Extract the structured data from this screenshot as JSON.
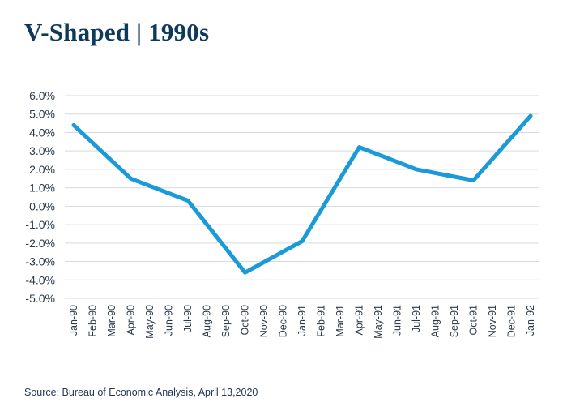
{
  "title": "V-Shaped | 1990s",
  "source": "Source: Bureau of Economic Analysis, April 13,2020",
  "chart_data": {
    "type": "line",
    "x": [
      "Jan-90",
      "Feb-90",
      "Mar-90",
      "Apr-90",
      "May-90",
      "Jun-90",
      "Jul-90",
      "Aug-90",
      "Sep-90",
      "Oct-90",
      "Nov-90",
      "Dec-90",
      "Jan-91",
      "Feb-91",
      "Mar-91",
      "Apr-91",
      "May-91",
      "Jun-91",
      "Jul-91",
      "Aug-91",
      "Sep-91",
      "Oct-91",
      "Nov-91",
      "Dec-91",
      "Jan-92"
    ],
    "series": [
      {
        "values": [
          4.4,
          null,
          null,
          1.5,
          null,
          null,
          0.3,
          null,
          null,
          -3.6,
          null,
          null,
          -1.9,
          null,
          null,
          3.2,
          null,
          null,
          2.0,
          null,
          null,
          1.4,
          null,
          null,
          4.9
        ],
        "color": "#1a9ad6"
      }
    ],
    "yticks": [
      "6.0%",
      "5.0%",
      "4.0%",
      "3.0%",
      "2.0%",
      "1.0%",
      "0.0%",
      "-1.0%",
      "-2.0%",
      "-3.0%",
      "-4.0%",
      "-5.0%"
    ],
    "ylim": [
      -5,
      6
    ],
    "grid": true,
    "grid_color": "#d5dbe0"
  }
}
